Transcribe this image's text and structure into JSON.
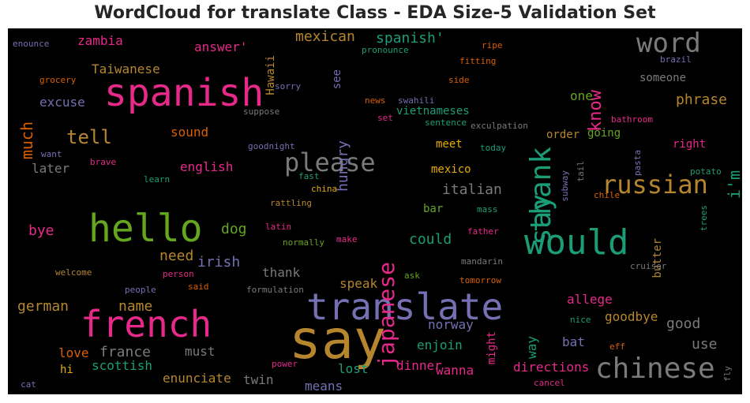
{
  "chart_data": {
    "type": "wordcloud",
    "title": "WordCloud for translate Class - EDA Size-5 Validation Set",
    "background": "#000000",
    "words": [
      {
        "text": "say",
        "color": "#b5862e"
      },
      {
        "text": "translate",
        "color": "#7570b3"
      },
      {
        "text": "french",
        "color": "#e7298a"
      },
      {
        "text": "spanish",
        "color": "#e7298a"
      },
      {
        "text": "hello",
        "color": "#66a61e"
      },
      {
        "text": "would",
        "color": "#1b9e77"
      },
      {
        "text": "chinese",
        "color": "#7a7a7a"
      },
      {
        "text": "say",
        "color": "#1b9e77"
      },
      {
        "text": "thank",
        "color": "#1b9e77"
      },
      {
        "text": "word",
        "color": "#7a7a7a"
      },
      {
        "text": "please",
        "color": "#7a7a7a"
      },
      {
        "text": "russian",
        "color": "#b5862e"
      },
      {
        "text": "japanese",
        "color": "#e7298a"
      },
      {
        "text": "tell",
        "color": "#b5862e"
      },
      {
        "text": "know",
        "color": "#e7298a"
      },
      {
        "text": "i'm",
        "color": "#1b9e77"
      },
      {
        "text": "much",
        "color": "#d95f02"
      },
      {
        "text": "mexican",
        "color": "#b5862e"
      },
      {
        "text": "spanish'",
        "color": "#1b9e77"
      },
      {
        "text": "hungry",
        "color": "#7570b3"
      },
      {
        "text": "italian",
        "color": "#7a7a7a"
      },
      {
        "text": "could",
        "color": "#1b9e77"
      },
      {
        "text": "dog",
        "color": "#66a61e"
      },
      {
        "text": "bye",
        "color": "#e7298a"
      },
      {
        "text": "german",
        "color": "#b5862e"
      },
      {
        "text": "name",
        "color": "#b5862e"
      },
      {
        "text": "irish",
        "color": "#7570b3"
      },
      {
        "text": "need",
        "color": "#b5862e"
      },
      {
        "text": "phrase",
        "color": "#b5862e"
      },
      {
        "text": "good",
        "color": "#7a7a7a"
      },
      {
        "text": "use",
        "color": "#7a7a7a"
      },
      {
        "text": "france",
        "color": "#7a7a7a"
      },
      {
        "text": "love",
        "color": "#d95f02"
      },
      {
        "text": "scottish",
        "color": "#1b9e77"
      },
      {
        "text": "enunciate",
        "color": "#b5862e"
      },
      {
        "text": "twin",
        "color": "#7a7a7a"
      },
      {
        "text": "means",
        "color": "#7570b3"
      },
      {
        "text": "lost",
        "color": "#1b9e77"
      },
      {
        "text": "dinner",
        "color": "#e7298a"
      },
      {
        "text": "wanna",
        "color": "#e7298a"
      },
      {
        "text": "directions",
        "color": "#e7298a"
      },
      {
        "text": "enjoin",
        "color": "#1b9e77"
      },
      {
        "text": "norway",
        "color": "#7570b3"
      },
      {
        "text": "speak",
        "color": "#b5862e"
      },
      {
        "text": "thank",
        "color": "#7a7a7a"
      },
      {
        "text": "must",
        "color": "#7a7a7a"
      },
      {
        "text": "allege",
        "color": "#e7298a"
      },
      {
        "text": "goodbye",
        "color": "#b5862e"
      },
      {
        "text": "bat",
        "color": "#7570b3"
      },
      {
        "text": "way",
        "color": "#1b9e77"
      },
      {
        "text": "might",
        "color": "#e7298a"
      },
      {
        "text": "butter",
        "color": "#b5862e"
      },
      {
        "text": "sound",
        "color": "#d95f02"
      },
      {
        "text": "english",
        "color": "#e7298a"
      },
      {
        "text": "excuse",
        "color": "#7570b3"
      },
      {
        "text": "later",
        "color": "#7a7a7a"
      },
      {
        "text": "Taiwanese",
        "color": "#b5862e"
      },
      {
        "text": "answer'",
        "color": "#e7298a"
      },
      {
        "text": "zambia",
        "color": "#e7298a"
      },
      {
        "text": "see",
        "color": "#7570b3"
      },
      {
        "text": "Hawaii",
        "color": "#b5862e"
      },
      {
        "text": "vietnameses",
        "color": "#1b9e77"
      },
      {
        "text": "meet",
        "color": "#e6ab02"
      },
      {
        "text": "mexico",
        "color": "#e6ab02"
      },
      {
        "text": "one",
        "color": "#66a61e"
      },
      {
        "text": "someone",
        "color": "#7a7a7a"
      },
      {
        "text": "order",
        "color": "#b5862e"
      },
      {
        "text": "going",
        "color": "#66a61e"
      },
      {
        "text": "right",
        "color": "#e7298a"
      },
      {
        "text": "bar",
        "color": "#66a61e"
      },
      {
        "text": "hi",
        "color": "#e6ab02"
      },
      {
        "text": "enounce",
        "color": "#7570b3"
      },
      {
        "text": "grocery",
        "color": "#d95f02"
      },
      {
        "text": "sorry",
        "color": "#7570b3"
      },
      {
        "text": "suppose",
        "color": "#7a7a7a"
      },
      {
        "text": "goodnight",
        "color": "#7570b3"
      },
      {
        "text": "want",
        "color": "#7570b3"
      },
      {
        "text": "brave",
        "color": "#e7298a"
      },
      {
        "text": "learn",
        "color": "#1b9e77"
      },
      {
        "text": "fast",
        "color": "#1b9e77"
      },
      {
        "text": "china",
        "color": "#e6ab02"
      },
      {
        "text": "rattling",
        "color": "#b5862e"
      },
      {
        "text": "latin",
        "color": "#e7298a"
      },
      {
        "text": "normally",
        "color": "#66a61e"
      },
      {
        "text": "make",
        "color": "#e7298a"
      },
      {
        "text": "welcome",
        "color": "#b5862e"
      },
      {
        "text": "person",
        "color": "#e7298a"
      },
      {
        "text": "people",
        "color": "#7570b3"
      },
      {
        "text": "said",
        "color": "#d95f02"
      },
      {
        "text": "formulation",
        "color": "#7a7a7a"
      },
      {
        "text": "ask",
        "color": "#66a61e"
      },
      {
        "text": "tomorrow",
        "color": "#d95f02"
      },
      {
        "text": "mandarin",
        "color": "#7a7a7a"
      },
      {
        "text": "father",
        "color": "#e7298a"
      },
      {
        "text": "mass",
        "color": "#1b9e77"
      },
      {
        "text": "cruiser",
        "color": "#7a7a7a"
      },
      {
        "text": "nice",
        "color": "#1b9e77"
      },
      {
        "text": "eff",
        "color": "#d95f02"
      },
      {
        "text": "power",
        "color": "#e7298a"
      },
      {
        "text": "cancel",
        "color": "#e7298a"
      },
      {
        "text": "cat",
        "color": "#7570b3"
      },
      {
        "text": "fly",
        "color": "#7a7a7a"
      },
      {
        "text": "pronounce",
        "color": "#1b9e77"
      },
      {
        "text": "ripe",
        "color": "#d95f02"
      },
      {
        "text": "fitting",
        "color": "#d95f02"
      },
      {
        "text": "brazil",
        "color": "#7570b3"
      },
      {
        "text": "side",
        "color": "#d95f02"
      },
      {
        "text": "news",
        "color": "#d95f02"
      },
      {
        "text": "swahili",
        "color": "#7570b3"
      },
      {
        "text": "set",
        "color": "#e7298a"
      },
      {
        "text": "sentence",
        "color": "#1b9e77"
      },
      {
        "text": "exculpation",
        "color": "#7a7a7a"
      },
      {
        "text": "bathroom",
        "color": "#e7298a"
      },
      {
        "text": "today",
        "color": "#1b9e77"
      },
      {
        "text": "pasta",
        "color": "#7570b3"
      },
      {
        "text": "tail",
        "color": "#7a7a7a"
      },
      {
        "text": "subway",
        "color": "#7570b3"
      },
      {
        "text": "chile",
        "color": "#d95f02"
      },
      {
        "text": "potato",
        "color": "#1b9e77"
      },
      {
        "text": "trees",
        "color": "#1b9e77"
      }
    ]
  }
}
